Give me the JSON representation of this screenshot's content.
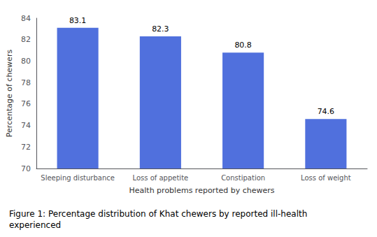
{
  "chart_data": {
    "type": "bar",
    "caption": "Figure 1: Percentage distribution of Khat chewers by reported ill-health\nexperienced",
    "categories": [
      "Sleeping disturbance",
      "Loss of appetite",
      "Constipation",
      "Loss of weight"
    ],
    "values": [
      83.1,
      82.3,
      80.8,
      74.6
    ],
    "xlabel": "Health problems reported by chewers",
    "ylabel": "Percentage of chewers",
    "ylim": [
      70,
      84
    ],
    "yticks": [
      70,
      72,
      74,
      76,
      78,
      80,
      82,
      84
    ],
    "data_labels": true,
    "grid": false
  }
}
